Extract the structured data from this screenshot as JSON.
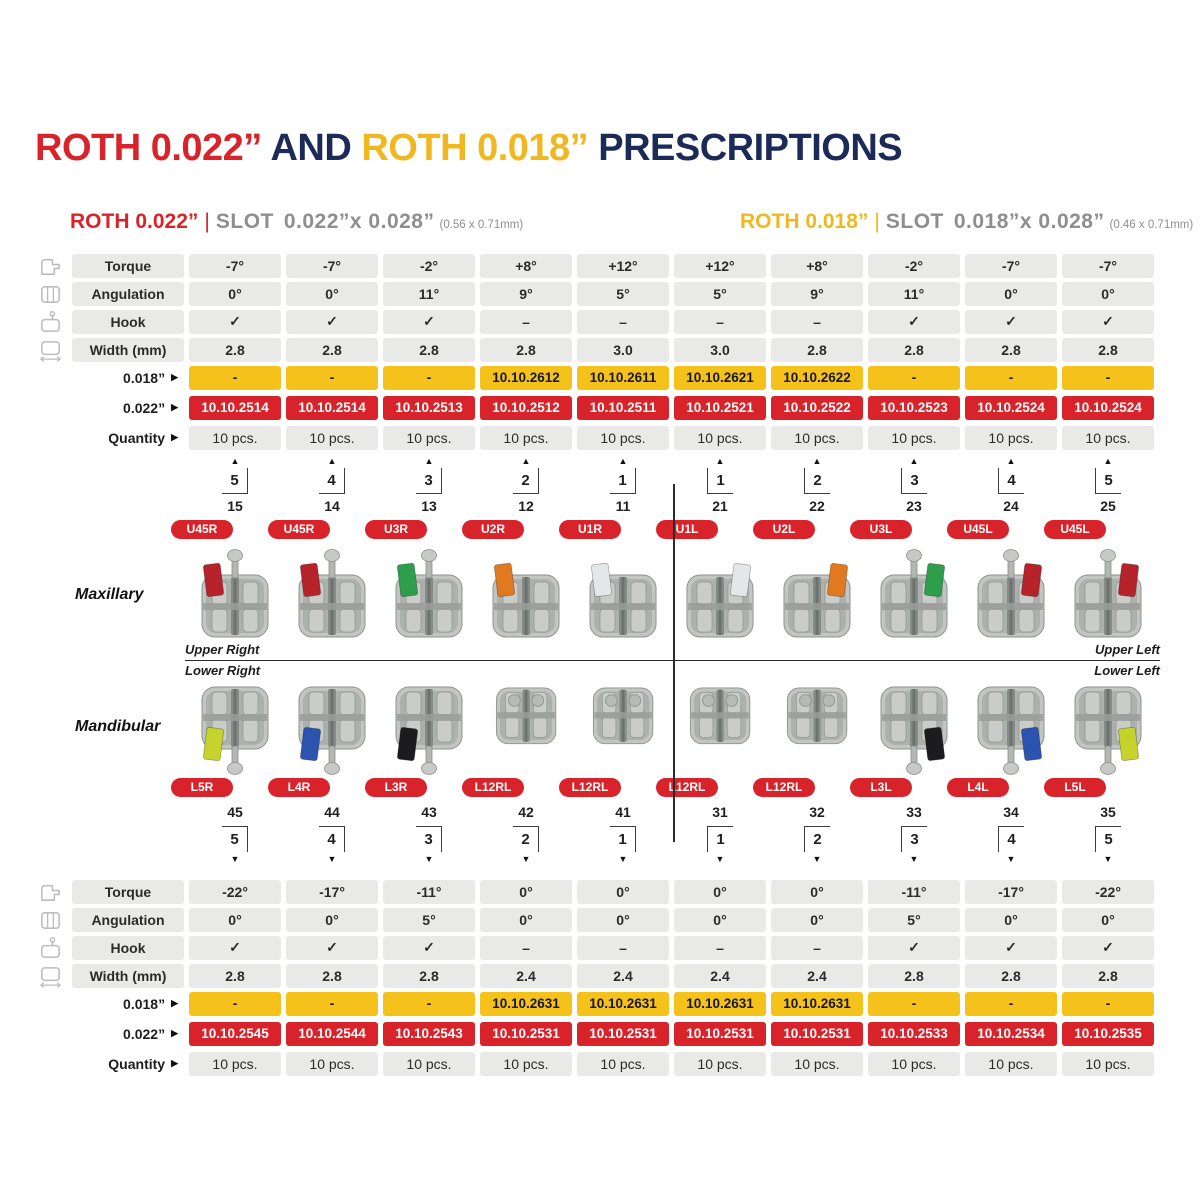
{
  "title": {
    "part1": "ROTH 0.022”",
    "part2": " AND ",
    "part3": "ROTH 0.018”",
    "part4": " PRESCRIPTIONS"
  },
  "subtitles": {
    "left": {
      "brand": "ROTH 0.022”",
      "divider": "|",
      "slot": "SLOT",
      "size": "0.022”x 0.028”",
      "metric": "(0.56 x 0.71mm)"
    },
    "right": {
      "brand": "ROTH 0.018”",
      "divider": "|",
      "slot": "SLOT",
      "size": "0.018”x 0.028”",
      "metric": "(0.46 x 0.71mm)"
    }
  },
  "ui": {
    "arrow_right": "▶",
    "triangle_up": "▲",
    "triangle_down": "▼"
  },
  "colors": {
    "red": "#D8232A",
    "navy": "#1C2A57",
    "yellow": "#F5C21C",
    "cell_gray": "#E9E9E8"
  },
  "top_table": {
    "rows": [
      {
        "icon": "torque-icon",
        "label": "Torque",
        "values": [
          "-7°",
          "-7°",
          "-2°",
          "+8°",
          "+12°",
          "+12°",
          "+8°",
          "-2°",
          "-7°",
          "-7°"
        ]
      },
      {
        "icon": "angulation-icon",
        "label": "Angulation",
        "values": [
          "0°",
          "0°",
          "11°",
          "9°",
          "5°",
          "5°",
          "9°",
          "11°",
          "0°",
          "0°"
        ]
      },
      {
        "icon": "hook-icon",
        "label": "Hook",
        "values": [
          "✓",
          "✓",
          "✓",
          "–",
          "–",
          "–",
          "–",
          "✓",
          "✓",
          "✓"
        ]
      },
      {
        "icon": "width-icon",
        "label": "Width (mm)",
        "values": [
          "2.8",
          "2.8",
          "2.8",
          "2.8",
          "3.0",
          "3.0",
          "2.8",
          "2.8",
          "2.8",
          "2.8"
        ]
      }
    ],
    "codes": [
      {
        "label": "0.018”",
        "type": "yellow",
        "values": [
          "-",
          "-",
          "-",
          "10.10.2612",
          "10.10.2611",
          "10.10.2621",
          "10.10.2622",
          "-",
          "-",
          "-"
        ]
      },
      {
        "label": "0.022”",
        "type": "red",
        "values": [
          "10.10.2514",
          "10.10.2514",
          "10.10.2513",
          "10.10.2512",
          "10.10.2511",
          "10.10.2521",
          "10.10.2522",
          "10.10.2523",
          "10.10.2524",
          "10.10.2524"
        ]
      },
      {
        "label": "Quantity",
        "type": "gray",
        "values": [
          "10 pcs.",
          "10 pcs.",
          "10 pcs.",
          "10 pcs.",
          "10 pcs.",
          "10 pcs.",
          "10 pcs.",
          "10 pcs.",
          "10 pcs.",
          "10 pcs."
        ]
      }
    ]
  },
  "maxillary": {
    "label": "Maxillary",
    "corner_left": "Upper Right",
    "corner_right": "Upper Left",
    "palmer": [
      "5",
      "4",
      "3",
      "2",
      "1",
      "1",
      "2",
      "3",
      "4",
      "5"
    ],
    "fdi": [
      "15",
      "14",
      "13",
      "12",
      "11",
      "21",
      "22",
      "23",
      "24",
      "25"
    ],
    "badges": [
      "U45R",
      "U45R",
      "U3R",
      "U2R",
      "U1R",
      "U1L",
      "U2L",
      "U3L",
      "U45L",
      "U45L"
    ],
    "brackets": [
      {
        "marker": "#B6232B",
        "hook": true,
        "side": "left",
        "variant": "twin"
      },
      {
        "marker": "#B6232B",
        "hook": true,
        "side": "left",
        "variant": "twin"
      },
      {
        "marker": "#2E9E4C",
        "hook": true,
        "side": "left",
        "variant": "twin"
      },
      {
        "marker": "#E0791F",
        "hook": false,
        "side": "left",
        "variant": "twin"
      },
      {
        "marker": "#E4E7E9",
        "hook": false,
        "side": "left",
        "variant": "twin"
      },
      {
        "marker": "#E4E7E9",
        "hook": false,
        "side": "right",
        "variant": "twin"
      },
      {
        "marker": "#E0791F",
        "hook": false,
        "side": "right",
        "variant": "twin"
      },
      {
        "marker": "#2E9E4C",
        "hook": true,
        "side": "right",
        "variant": "twin"
      },
      {
        "marker": "#B6232B",
        "hook": true,
        "side": "right",
        "variant": "twin"
      },
      {
        "marker": "#B6232B",
        "hook": true,
        "side": "right",
        "variant": "twin"
      }
    ]
  },
  "mandibular": {
    "label": "Mandibular",
    "corner_left": "Lower Right",
    "corner_right": "Lower Left",
    "palmer": [
      "5",
      "4",
      "3",
      "2",
      "1",
      "1",
      "2",
      "3",
      "4",
      "5"
    ],
    "fdi": [
      "45",
      "44",
      "43",
      "42",
      "41",
      "31",
      "32",
      "33",
      "34",
      "35"
    ],
    "badges": [
      "L5R",
      "L4R",
      "L3R",
      "L12RL",
      "L12RL",
      "L12RL",
      "L12RL",
      "L3L",
      "L4L",
      "L5L"
    ],
    "brackets": [
      {
        "marker": "#C6D32C",
        "hook": true,
        "side": "left",
        "variant": "twin"
      },
      {
        "marker": "#2C54AE",
        "hook": true,
        "side": "left",
        "variant": "twin"
      },
      {
        "marker": "#1C1C1F",
        "hook": true,
        "side": "left",
        "variant": "twin"
      },
      {
        "marker": null,
        "hook": false,
        "side": "left",
        "variant": "plain"
      },
      {
        "marker": null,
        "hook": false,
        "side": "left",
        "variant": "plain"
      },
      {
        "marker": null,
        "hook": false,
        "side": "right",
        "variant": "plain"
      },
      {
        "marker": null,
        "hook": false,
        "side": "right",
        "variant": "plain"
      },
      {
        "marker": "#1C1C1F",
        "hook": true,
        "side": "right",
        "variant": "twin"
      },
      {
        "marker": "#2C54AE",
        "hook": true,
        "side": "right",
        "variant": "twin"
      },
      {
        "marker": "#C6D32C",
        "hook": true,
        "side": "right",
        "variant": "twin"
      }
    ]
  },
  "bottom_table": {
    "rows": [
      {
        "icon": "torque-icon",
        "label": "Torque",
        "values": [
          "-22°",
          "-17°",
          "-11°",
          "0°",
          "0°",
          "0°",
          "0°",
          "-11°",
          "-17°",
          "-22°"
        ]
      },
      {
        "icon": "angulation-icon",
        "label": "Angulation",
        "values": [
          "0°",
          "0°",
          "5°",
          "0°",
          "0°",
          "0°",
          "0°",
          "5°",
          "0°",
          "0°"
        ]
      },
      {
        "icon": "hook-icon",
        "label": "Hook",
        "values": [
          "✓",
          "✓",
          "✓",
          "–",
          "–",
          "–",
          "–",
          "✓",
          "✓",
          "✓"
        ]
      },
      {
        "icon": "width-icon",
        "label": "Width (mm)",
        "values": [
          "2.8",
          "2.8",
          "2.8",
          "2.4",
          "2.4",
          "2.4",
          "2.4",
          "2.8",
          "2.8",
          "2.8"
        ]
      }
    ],
    "codes": [
      {
        "label": "0.018”",
        "type": "yellow",
        "values": [
          "-",
          "-",
          "-",
          "10.10.2631",
          "10.10.2631",
          "10.10.2631",
          "10.10.2631",
          "-",
          "-",
          "-"
        ]
      },
      {
        "label": "0.022”",
        "type": "red",
        "values": [
          "10.10.2545",
          "10.10.2544",
          "10.10.2543",
          "10.10.2531",
          "10.10.2531",
          "10.10.2531",
          "10.10.2531",
          "10.10.2533",
          "10.10.2534",
          "10.10.2535"
        ]
      },
      {
        "label": "Quantity",
        "type": "gray",
        "values": [
          "10 pcs.",
          "10 pcs.",
          "10 pcs.",
          "10 pcs.",
          "10 pcs.",
          "10 pcs.",
          "10 pcs.",
          "10 pcs.",
          "10 pcs.",
          "10 pcs."
        ]
      }
    ]
  }
}
